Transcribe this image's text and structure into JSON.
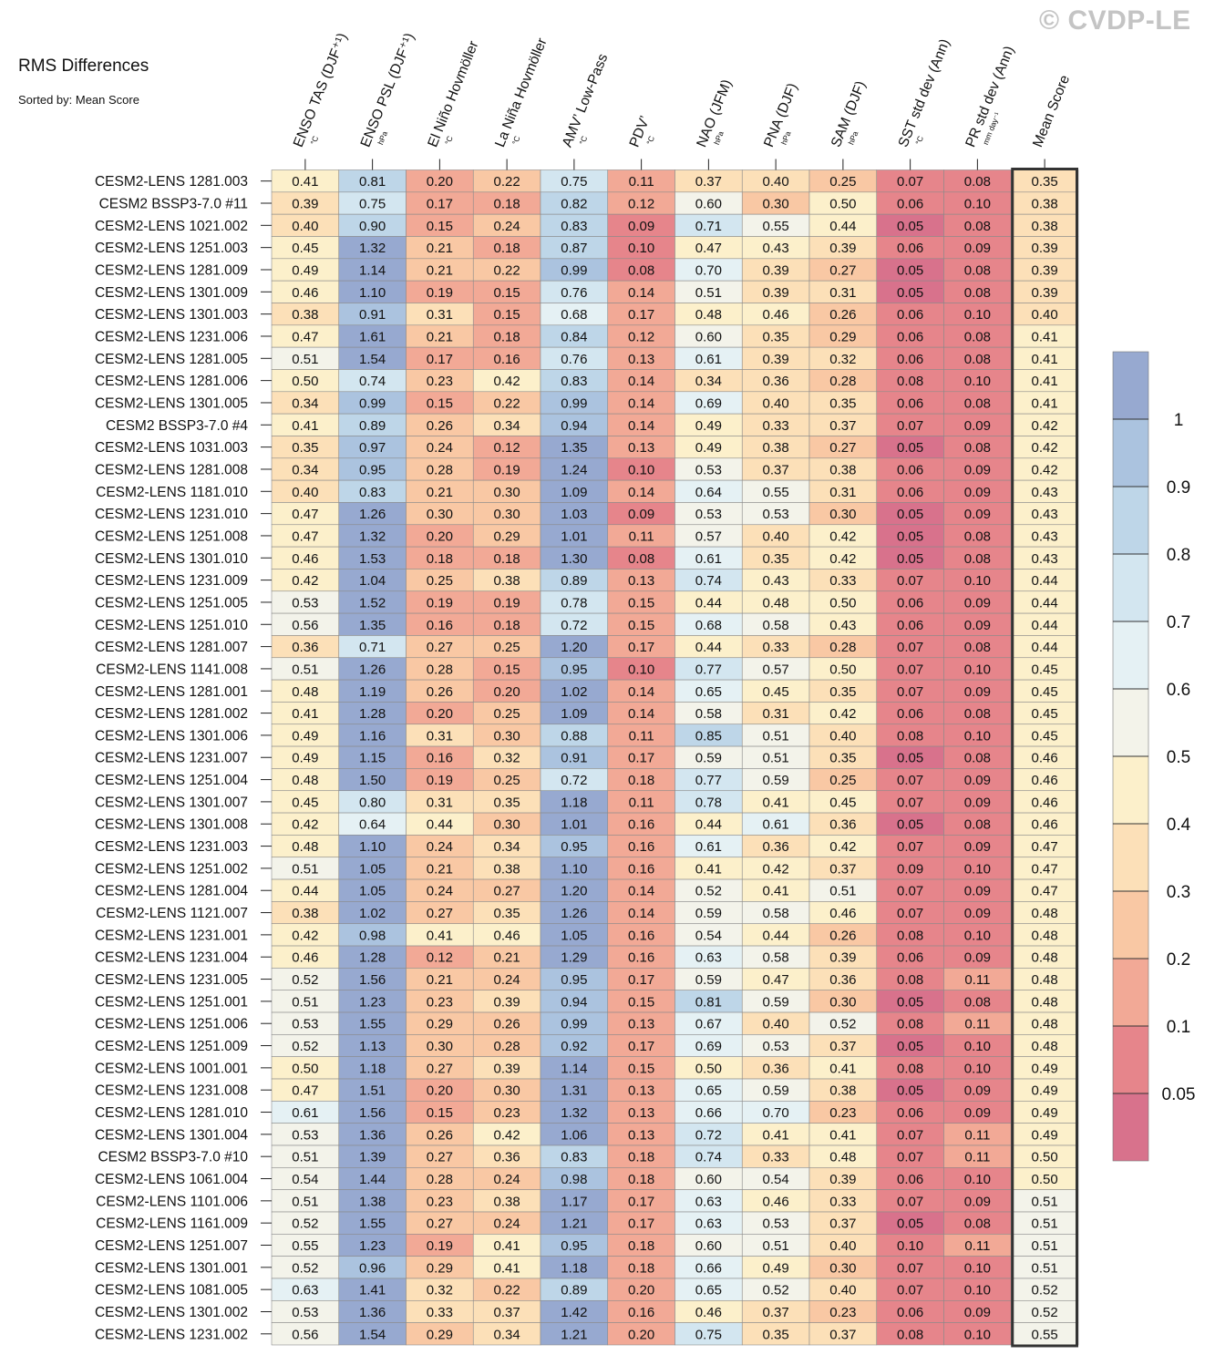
{
  "watermark": "© CVDP-LE",
  "chart_data": {
    "type": "heatmap",
    "title": "RMS Differences",
    "subtitle": "Sorted by: Mean Score",
    "columns": [
      {
        "name": "ENSO TAS (DJF⁺¹)",
        "unit": "°C"
      },
      {
        "name": "ENSO PSL (DJF⁺¹)",
        "unit": "hPa"
      },
      {
        "name": "El Niño Hovmöller",
        "unit": "°C"
      },
      {
        "name": "La Niña Hovmöller",
        "unit": "°C"
      },
      {
        "name": "AMV’ Low-Pass",
        "unit": "°C"
      },
      {
        "name": "PDV’",
        "unit": "°C"
      },
      {
        "name": "NAO (JFM)",
        "unit": "hPa"
      },
      {
        "name": "PNA (DJF)",
        "unit": "hPa"
      },
      {
        "name": "SAM (DJF)",
        "unit": "hPa"
      },
      {
        "name": "SST std dev (Ann)",
        "unit": "°C"
      },
      {
        "name": "PR std dev (Ann)",
        "unit": "mm day⁻¹"
      },
      {
        "name": "Mean Score",
        "unit": ""
      }
    ],
    "rows": [
      {
        "label": "CESM2-LENS 1281.003",
        "values": [
          "0.41",
          "0.81",
          "0.20",
          "0.22",
          "0.75",
          "0.11",
          "0.37",
          "0.40",
          "0.25",
          "0.07",
          "0.08",
          "0.35"
        ]
      },
      {
        "label": "CESM2 BSSP3-7.0 #11",
        "values": [
          "0.39",
          "0.75",
          "0.17",
          "0.18",
          "0.82",
          "0.12",
          "0.60",
          "0.30",
          "0.50",
          "0.06",
          "0.10",
          "0.38"
        ]
      },
      {
        "label": "CESM2-LENS 1021.002",
        "values": [
          "0.40",
          "0.90",
          "0.15",
          "0.24",
          "0.83",
          "0.09",
          "0.71",
          "0.55",
          "0.44",
          "0.05",
          "0.08",
          "0.38"
        ]
      },
      {
        "label": "CESM2-LENS 1251.003",
        "values": [
          "0.45",
          "1.32",
          "0.21",
          "0.18",
          "0.87",
          "0.10",
          "0.47",
          "0.43",
          "0.39",
          "0.06",
          "0.09",
          "0.39"
        ]
      },
      {
        "label": "CESM2-LENS 1281.009",
        "values": [
          "0.49",
          "1.14",
          "0.21",
          "0.22",
          "0.99",
          "0.08",
          "0.70",
          "0.39",
          "0.27",
          "0.05",
          "0.08",
          "0.39"
        ]
      },
      {
        "label": "CESM2-LENS 1301.009",
        "values": [
          "0.46",
          "1.10",
          "0.19",
          "0.15",
          "0.76",
          "0.14",
          "0.51",
          "0.39",
          "0.31",
          "0.05",
          "0.08",
          "0.39"
        ]
      },
      {
        "label": "CESM2-LENS 1301.003",
        "values": [
          "0.38",
          "0.91",
          "0.31",
          "0.15",
          "0.68",
          "0.17",
          "0.48",
          "0.46",
          "0.26",
          "0.06",
          "0.10",
          "0.40"
        ]
      },
      {
        "label": "CESM2-LENS 1231.006",
        "values": [
          "0.47",
          "1.61",
          "0.21",
          "0.18",
          "0.84",
          "0.12",
          "0.60",
          "0.35",
          "0.29",
          "0.06",
          "0.08",
          "0.41"
        ]
      },
      {
        "label": "CESM2-LENS 1281.005",
        "values": [
          "0.51",
          "1.54",
          "0.17",
          "0.16",
          "0.76",
          "0.13",
          "0.61",
          "0.39",
          "0.32",
          "0.06",
          "0.08",
          "0.41"
        ]
      },
      {
        "label": "CESM2-LENS 1281.006",
        "values": [
          "0.50",
          "0.74",
          "0.23",
          "0.42",
          "0.83",
          "0.14",
          "0.34",
          "0.36",
          "0.28",
          "0.08",
          "0.10",
          "0.41"
        ]
      },
      {
        "label": "CESM2-LENS 1301.005",
        "values": [
          "0.34",
          "0.99",
          "0.15",
          "0.22",
          "0.99",
          "0.14",
          "0.69",
          "0.40",
          "0.35",
          "0.06",
          "0.08",
          "0.41"
        ]
      },
      {
        "label": "CESM2 BSSP3-7.0 #4",
        "values": [
          "0.41",
          "0.89",
          "0.26",
          "0.34",
          "0.94",
          "0.14",
          "0.49",
          "0.33",
          "0.37",
          "0.07",
          "0.09",
          "0.42"
        ]
      },
      {
        "label": "CESM2-LENS 1031.003",
        "values": [
          "0.35",
          "0.97",
          "0.24",
          "0.12",
          "1.35",
          "0.13",
          "0.49",
          "0.38",
          "0.27",
          "0.05",
          "0.08",
          "0.42"
        ]
      },
      {
        "label": "CESM2-LENS 1281.008",
        "values": [
          "0.34",
          "0.95",
          "0.28",
          "0.19",
          "1.24",
          "0.10",
          "0.53",
          "0.37",
          "0.38",
          "0.06",
          "0.09",
          "0.42"
        ]
      },
      {
        "label": "CESM2-LENS 1181.010",
        "values": [
          "0.40",
          "0.83",
          "0.21",
          "0.30",
          "1.09",
          "0.14",
          "0.64",
          "0.55",
          "0.31",
          "0.06",
          "0.09",
          "0.43"
        ]
      },
      {
        "label": "CESM2-LENS 1231.010",
        "values": [
          "0.47",
          "1.26",
          "0.30",
          "0.30",
          "1.03",
          "0.09",
          "0.53",
          "0.53",
          "0.30",
          "0.05",
          "0.09",
          "0.43"
        ]
      },
      {
        "label": "CESM2-LENS 1251.008",
        "values": [
          "0.47",
          "1.32",
          "0.20",
          "0.29",
          "1.01",
          "0.11",
          "0.57",
          "0.40",
          "0.42",
          "0.05",
          "0.08",
          "0.43"
        ]
      },
      {
        "label": "CESM2-LENS 1301.010",
        "values": [
          "0.46",
          "1.53",
          "0.18",
          "0.18",
          "1.30",
          "0.08",
          "0.61",
          "0.35",
          "0.42",
          "0.05",
          "0.08",
          "0.43"
        ]
      },
      {
        "label": "CESM2-LENS 1231.009",
        "values": [
          "0.42",
          "1.04",
          "0.25",
          "0.38",
          "0.89",
          "0.13",
          "0.74",
          "0.43",
          "0.33",
          "0.07",
          "0.10",
          "0.44"
        ]
      },
      {
        "label": "CESM2-LENS 1251.005",
        "values": [
          "0.53",
          "1.52",
          "0.19",
          "0.19",
          "0.78",
          "0.15",
          "0.44",
          "0.48",
          "0.50",
          "0.06",
          "0.09",
          "0.44"
        ]
      },
      {
        "label": "CESM2-LENS 1251.010",
        "values": [
          "0.56",
          "1.35",
          "0.16",
          "0.18",
          "0.72",
          "0.15",
          "0.68",
          "0.58",
          "0.43",
          "0.06",
          "0.09",
          "0.44"
        ]
      },
      {
        "label": "CESM2-LENS 1281.007",
        "values": [
          "0.36",
          "0.71",
          "0.27",
          "0.25",
          "1.20",
          "0.17",
          "0.44",
          "0.33",
          "0.28",
          "0.07",
          "0.08",
          "0.44"
        ]
      },
      {
        "label": "CESM2-LENS 1141.008",
        "values": [
          "0.51",
          "1.26",
          "0.28",
          "0.15",
          "0.95",
          "0.10",
          "0.77",
          "0.57",
          "0.50",
          "0.07",
          "0.10",
          "0.45"
        ]
      },
      {
        "label": "CESM2-LENS 1281.001",
        "values": [
          "0.48",
          "1.19",
          "0.26",
          "0.20",
          "1.02",
          "0.14",
          "0.65",
          "0.45",
          "0.35",
          "0.07",
          "0.09",
          "0.45"
        ]
      },
      {
        "label": "CESM2-LENS 1281.002",
        "values": [
          "0.41",
          "1.28",
          "0.20",
          "0.25",
          "1.09",
          "0.14",
          "0.58",
          "0.31",
          "0.42",
          "0.06",
          "0.08",
          "0.45"
        ]
      },
      {
        "label": "CESM2-LENS 1301.006",
        "values": [
          "0.49",
          "1.16",
          "0.31",
          "0.30",
          "0.88",
          "0.11",
          "0.85",
          "0.51",
          "0.40",
          "0.08",
          "0.10",
          "0.45"
        ]
      },
      {
        "label": "CESM2-LENS 1231.007",
        "values": [
          "0.49",
          "1.15",
          "0.16",
          "0.32",
          "0.91",
          "0.17",
          "0.59",
          "0.51",
          "0.35",
          "0.05",
          "0.08",
          "0.46"
        ]
      },
      {
        "label": "CESM2-LENS 1251.004",
        "values": [
          "0.48",
          "1.50",
          "0.19",
          "0.25",
          "0.72",
          "0.18",
          "0.77",
          "0.59",
          "0.25",
          "0.07",
          "0.09",
          "0.46"
        ]
      },
      {
        "label": "CESM2-LENS 1301.007",
        "values": [
          "0.45",
          "0.80",
          "0.31",
          "0.35",
          "1.18",
          "0.11",
          "0.78",
          "0.41",
          "0.45",
          "0.07",
          "0.09",
          "0.46"
        ]
      },
      {
        "label": "CESM2-LENS 1301.008",
        "values": [
          "0.42",
          "0.64",
          "0.44",
          "0.30",
          "1.01",
          "0.16",
          "0.44",
          "0.61",
          "0.36",
          "0.05",
          "0.08",
          "0.46"
        ]
      },
      {
        "label": "CESM2-LENS 1231.003",
        "values": [
          "0.48",
          "1.10",
          "0.24",
          "0.34",
          "0.95",
          "0.16",
          "0.61",
          "0.36",
          "0.42",
          "0.07",
          "0.09",
          "0.47"
        ]
      },
      {
        "label": "CESM2-LENS 1251.002",
        "values": [
          "0.51",
          "1.05",
          "0.21",
          "0.38",
          "1.10",
          "0.16",
          "0.41",
          "0.42",
          "0.37",
          "0.09",
          "0.10",
          "0.47"
        ]
      },
      {
        "label": "CESM2-LENS 1281.004",
        "values": [
          "0.44",
          "1.05",
          "0.24",
          "0.27",
          "1.20",
          "0.14",
          "0.52",
          "0.41",
          "0.51",
          "0.07",
          "0.09",
          "0.47"
        ]
      },
      {
        "label": "CESM2-LENS 1121.007",
        "values": [
          "0.38",
          "1.02",
          "0.27",
          "0.35",
          "1.26",
          "0.14",
          "0.59",
          "0.58",
          "0.46",
          "0.07",
          "0.09",
          "0.48"
        ]
      },
      {
        "label": "CESM2-LENS 1231.001",
        "values": [
          "0.42",
          "0.98",
          "0.41",
          "0.46",
          "1.05",
          "0.16",
          "0.54",
          "0.44",
          "0.26",
          "0.08",
          "0.10",
          "0.48"
        ]
      },
      {
        "label": "CESM2-LENS 1231.004",
        "values": [
          "0.46",
          "1.28",
          "0.12",
          "0.21",
          "1.29",
          "0.16",
          "0.63",
          "0.58",
          "0.39",
          "0.06",
          "0.09",
          "0.48"
        ]
      },
      {
        "label": "CESM2-LENS 1231.005",
        "values": [
          "0.52",
          "1.56",
          "0.21",
          "0.24",
          "0.95",
          "0.17",
          "0.59",
          "0.47",
          "0.36",
          "0.08",
          "0.11",
          "0.48"
        ]
      },
      {
        "label": "CESM2-LENS 1251.001",
        "values": [
          "0.51",
          "1.23",
          "0.23",
          "0.39",
          "0.94",
          "0.15",
          "0.81",
          "0.59",
          "0.30",
          "0.05",
          "0.08",
          "0.48"
        ]
      },
      {
        "label": "CESM2-LENS 1251.006",
        "values": [
          "0.53",
          "1.55",
          "0.29",
          "0.26",
          "0.99",
          "0.13",
          "0.67",
          "0.40",
          "0.52",
          "0.08",
          "0.11",
          "0.48"
        ]
      },
      {
        "label": "CESM2-LENS 1251.009",
        "values": [
          "0.52",
          "1.13",
          "0.30",
          "0.28",
          "0.92",
          "0.17",
          "0.69",
          "0.53",
          "0.37",
          "0.05",
          "0.10",
          "0.48"
        ]
      },
      {
        "label": "CESM2-LENS 1001.001",
        "values": [
          "0.50",
          "1.18",
          "0.27",
          "0.39",
          "1.14",
          "0.15",
          "0.50",
          "0.36",
          "0.41",
          "0.08",
          "0.10",
          "0.49"
        ]
      },
      {
        "label": "CESM2-LENS 1231.008",
        "values": [
          "0.47",
          "1.51",
          "0.20",
          "0.30",
          "1.31",
          "0.13",
          "0.65",
          "0.59",
          "0.38",
          "0.05",
          "0.09",
          "0.49"
        ]
      },
      {
        "label": "CESM2-LENS 1281.010",
        "values": [
          "0.61",
          "1.56",
          "0.15",
          "0.23",
          "1.32",
          "0.13",
          "0.66",
          "0.70",
          "0.23",
          "0.06",
          "0.09",
          "0.49"
        ]
      },
      {
        "label": "CESM2-LENS 1301.004",
        "values": [
          "0.53",
          "1.36",
          "0.26",
          "0.42",
          "1.06",
          "0.13",
          "0.72",
          "0.41",
          "0.41",
          "0.07",
          "0.11",
          "0.49"
        ]
      },
      {
        "label": "CESM2 BSSP3-7.0 #10",
        "values": [
          "0.51",
          "1.39",
          "0.27",
          "0.36",
          "0.83",
          "0.18",
          "0.74",
          "0.33",
          "0.48",
          "0.07",
          "0.11",
          "0.50"
        ]
      },
      {
        "label": "CESM2-LENS 1061.004",
        "values": [
          "0.54",
          "1.44",
          "0.28",
          "0.24",
          "0.98",
          "0.18",
          "0.60",
          "0.54",
          "0.39",
          "0.06",
          "0.10",
          "0.50"
        ]
      },
      {
        "label": "CESM2-LENS 1101.006",
        "values": [
          "0.51",
          "1.38",
          "0.23",
          "0.38",
          "1.17",
          "0.17",
          "0.63",
          "0.46",
          "0.33",
          "0.07",
          "0.09",
          "0.51"
        ]
      },
      {
        "label": "CESM2-LENS 1161.009",
        "values": [
          "0.52",
          "1.55",
          "0.27",
          "0.24",
          "1.21",
          "0.17",
          "0.63",
          "0.53",
          "0.37",
          "0.05",
          "0.08",
          "0.51"
        ]
      },
      {
        "label": "CESM2-LENS 1251.007",
        "values": [
          "0.55",
          "1.23",
          "0.19",
          "0.41",
          "0.95",
          "0.18",
          "0.60",
          "0.51",
          "0.40",
          "0.10",
          "0.11",
          "0.51"
        ]
      },
      {
        "label": "CESM2-LENS 1301.001",
        "values": [
          "0.52",
          "0.96",
          "0.29",
          "0.41",
          "1.18",
          "0.18",
          "0.66",
          "0.49",
          "0.30",
          "0.07",
          "0.10",
          "0.51"
        ]
      },
      {
        "label": "CESM2-LENS 1081.005",
        "values": [
          "0.63",
          "1.41",
          "0.32",
          "0.22",
          "0.89",
          "0.20",
          "0.65",
          "0.52",
          "0.40",
          "0.07",
          "0.10",
          "0.52"
        ]
      },
      {
        "label": "CESM2-LENS 1301.002",
        "values": [
          "0.53",
          "1.36",
          "0.33",
          "0.37",
          "1.42",
          "0.16",
          "0.46",
          "0.37",
          "0.23",
          "0.06",
          "0.09",
          "0.52"
        ]
      },
      {
        "label": "CESM2-LENS 1231.002",
        "values": [
          "0.56",
          "1.54",
          "0.29",
          "0.34",
          "1.21",
          "0.20",
          "0.75",
          "0.35",
          "0.37",
          "0.08",
          "0.10",
          "0.55"
        ]
      }
    ],
    "colorbar": {
      "levels": [
        "1",
        "0.9",
        "0.8",
        "0.7",
        "0.6",
        "0.5",
        "0.4",
        "0.3",
        "0.2",
        "0.1",
        "0.05"
      ],
      "level_values": [
        1,
        0.9,
        0.8,
        0.7,
        0.6,
        0.5,
        0.4,
        0.3,
        0.2,
        0.1,
        0.05
      ],
      "colors": [
        "#97a9d0",
        "#abc3df",
        "#bed6e8",
        "#d3e6f0",
        "#e5f1f4",
        "#f3f3ea",
        "#fcf0cb",
        "#fce0b8",
        "#f9c8a4",
        "#f2a996",
        "#e6858b",
        "#d8728c"
      ]
    },
    "highlighted_column": "Mean Score"
  }
}
